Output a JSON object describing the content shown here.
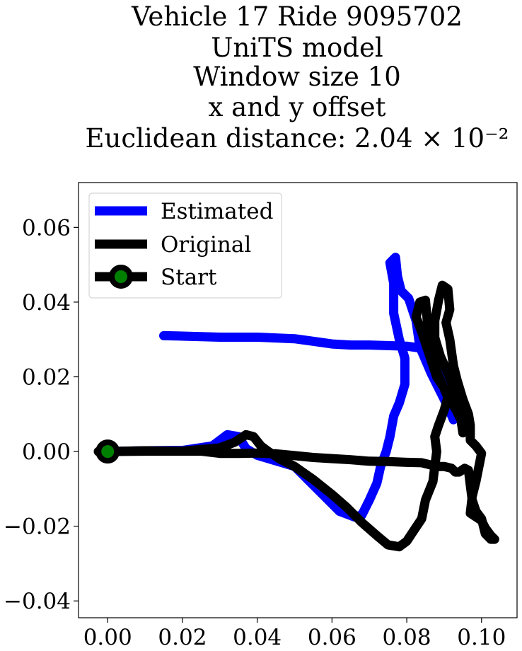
{
  "chart_data": {
    "type": "line",
    "title_lines": [
      "Vehicle 17 Ride 9095702",
      "UniTS model",
      "Window size 10",
      "x and y offset",
      "Euclidean distance: 2.04 × 10⁻²"
    ],
    "xlabel": "",
    "ylabel": "",
    "xlim": [
      -0.0078,
      0.1095
    ],
    "ylim": [
      -0.0445,
      0.072
    ],
    "xticks": [
      0.0,
      0.02,
      0.04,
      0.06,
      0.08,
      0.1
    ],
    "xtick_labels": [
      "0.00",
      "0.02",
      "0.04",
      "0.06",
      "0.08",
      "0.10"
    ],
    "yticks": [
      -0.04,
      -0.02,
      0.0,
      0.02,
      0.04,
      0.06
    ],
    "ytick_labels": [
      "−0.04",
      "−0.02",
      "0.00",
      "0.02",
      "0.04",
      "0.06"
    ],
    "grid": false,
    "legend": {
      "position": "top-left",
      "entries": [
        {
          "label": "Estimated",
          "color": "#0000ff",
          "kind": "line"
        },
        {
          "label": "Original",
          "color": "#000000",
          "kind": "line"
        },
        {
          "label": "Start",
          "color": "#000000",
          "marker_color": "#008000",
          "kind": "marker"
        }
      ]
    },
    "series": [
      {
        "name": "Estimated",
        "color": "#0000ff",
        "points": [
          [
            0.0,
            0.0
          ],
          [
            0.01,
            0.0002
          ],
          [
            0.02,
            0.0003
          ],
          [
            0.028,
            0.0015
          ],
          [
            0.032,
            0.0045
          ],
          [
            0.035,
            0.004
          ],
          [
            0.037,
            0.0008
          ],
          [
            0.04,
            -0.001
          ],
          [
            0.045,
            -0.0025
          ],
          [
            0.05,
            -0.004
          ],
          [
            0.054,
            -0.008
          ],
          [
            0.058,
            -0.012
          ],
          [
            0.062,
            -0.016
          ],
          [
            0.066,
            -0.0175
          ],
          [
            0.068,
            -0.017
          ],
          [
            0.07,
            -0.013
          ],
          [
            0.072,
            -0.0085
          ],
          [
            0.073,
            -0.004
          ],
          [
            0.0745,
            0.0
          ],
          [
            0.0755,
            0.004
          ],
          [
            0.0765,
            0.0095
          ],
          [
            0.078,
            0.013
          ],
          [
            0.0795,
            0.018
          ],
          [
            0.0795,
            0.025
          ],
          [
            0.078,
            0.03
          ],
          [
            0.0765,
            0.037
          ],
          [
            0.0765,
            0.045
          ],
          [
            0.0755,
            0.0505
          ],
          [
            0.077,
            0.052
          ],
          [
            0.0775,
            0.047
          ],
          [
            0.0785,
            0.043
          ],
          [
            0.0805,
            0.041
          ],
          [
            0.0825,
            0.035
          ],
          [
            0.0835,
            0.028
          ],
          [
            0.0865,
            0.021
          ],
          [
            0.089,
            0.016
          ],
          [
            0.091,
            0.012
          ],
          [
            0.0925,
            0.0085
          ],
          [
            0.093,
            0.012
          ],
          [
            0.092,
            0.017
          ],
          [
            0.09,
            0.02
          ],
          [
            0.0875,
            0.0245
          ],
          [
            0.085,
            0.0275
          ],
          [
            0.08,
            0.0282
          ],
          [
            0.07,
            0.0285
          ],
          [
            0.065,
            0.0285
          ],
          [
            0.06,
            0.0288
          ],
          [
            0.0565,
            0.0293
          ],
          [
            0.05,
            0.0302
          ],
          [
            0.04,
            0.0306
          ],
          [
            0.03,
            0.0306
          ],
          [
            0.02,
            0.0309
          ],
          [
            0.015,
            0.031
          ]
        ]
      },
      {
        "name": "Original",
        "color": "#000000",
        "points": [
          [
            0.0,
            0.0
          ],
          [
            0.01,
            0.0002
          ],
          [
            0.02,
            0.0001
          ],
          [
            0.03,
            0.001
          ],
          [
            0.034,
            0.0025
          ],
          [
            0.037,
            0.0045
          ],
          [
            0.039,
            0.004
          ],
          [
            0.041,
            0.0015
          ],
          [
            0.043,
            0.0
          ],
          [
            0.046,
            -0.002
          ],
          [
            0.05,
            -0.004
          ],
          [
            0.055,
            -0.0075
          ],
          [
            0.06,
            -0.0115
          ],
          [
            0.064,
            -0.015
          ],
          [
            0.068,
            -0.019
          ],
          [
            0.072,
            -0.0225
          ],
          [
            0.075,
            -0.025
          ],
          [
            0.078,
            -0.0255
          ],
          [
            0.08,
            -0.024
          ],
          [
            0.082,
            -0.021
          ],
          [
            0.084,
            -0.018
          ],
          [
            0.085,
            -0.013
          ],
          [
            0.087,
            -0.008
          ],
          [
            0.0875,
            -0.004
          ],
          [
            0.088,
            0.0
          ],
          [
            0.0875,
            0.004
          ],
          [
            0.0885,
            0.007
          ],
          [
            0.09,
            0.011
          ],
          [
            0.091,
            0.0145
          ],
          [
            0.09,
            0.017
          ],
          [
            0.088,
            0.02
          ],
          [
            0.086,
            0.026
          ],
          [
            0.084,
            0.032
          ],
          [
            0.0825,
            0.036
          ],
          [
            0.0835,
            0.04
          ],
          [
            0.085,
            0.0405
          ],
          [
            0.0855,
            0.035
          ],
          [
            0.0865,
            0.028
          ],
          [
            0.088,
            0.0215
          ],
          [
            0.091,
            0.0145
          ],
          [
            0.093,
            0.0115
          ],
          [
            0.0945,
            0.0085
          ],
          [
            0.095,
            0.005
          ],
          [
            0.0945,
            0.012
          ],
          [
            0.093,
            0.016
          ],
          [
            0.091,
            0.021
          ],
          [
            0.089,
            0.0255
          ],
          [
            0.0875,
            0.0305
          ],
          [
            0.0875,
            0.035
          ],
          [
            0.0885,
            0.0405
          ],
          [
            0.0895,
            0.0445
          ],
          [
            0.091,
            0.0435
          ],
          [
            0.0915,
            0.038
          ],
          [
            0.0905,
            0.0345
          ],
          [
            0.0915,
            0.03
          ],
          [
            0.0925,
            0.023
          ],
          [
            0.0935,
            0.019
          ],
          [
            0.095,
            0.014
          ],
          [
            0.0965,
            0.01
          ],
          [
            0.097,
            0.007
          ],
          [
            0.097,
            0.003
          ],
          [
            0.0985,
            0.0015
          ],
          [
            0.1,
            -0.0005
          ],
          [
            0.0985,
            -0.008
          ],
          [
            0.0975,
            -0.012
          ],
          [
            0.097,
            -0.0165
          ],
          [
            0.0985,
            -0.0175
          ],
          [
            0.1,
            -0.0185
          ],
          [
            0.101,
            -0.0205
          ],
          [
            0.1025,
            -0.0225
          ],
          [
            0.1035,
            -0.0235
          ],
          [
            0.1025,
            -0.0235
          ],
          [
            0.101,
            -0.022
          ],
          [
            0.1,
            -0.018
          ],
          [
            0.0985,
            -0.016
          ],
          [
            0.0975,
            -0.013
          ],
          [
            0.097,
            -0.009
          ],
          [
            0.0965,
            -0.005
          ],
          [
            0.0955,
            -0.0045
          ],
          [
            0.094,
            -0.0055
          ],
          [
            0.093,
            -0.0055
          ],
          [
            0.092,
            -0.0045
          ],
          [
            0.09,
            -0.004
          ],
          [
            0.088,
            -0.004
          ],
          [
            0.086,
            -0.0035
          ],
          [
            0.084,
            -0.003
          ],
          [
            0.08,
            -0.0029
          ],
          [
            0.075,
            -0.0027
          ],
          [
            0.07,
            -0.0026
          ],
          [
            0.065,
            -0.0022
          ],
          [
            0.06,
            -0.0019
          ],
          [
            0.055,
            -0.0016
          ],
          [
            0.05,
            -0.0011
          ],
          [
            0.045,
            -0.0006
          ],
          [
            0.04,
            -0.0004
          ],
          [
            0.035,
            -0.0005
          ],
          [
            0.03,
            -0.0005
          ],
          [
            0.025,
            0.0001
          ],
          [
            0.02,
            0.0001
          ],
          [
            0.01,
            0.0001
          ],
          [
            -0.0025,
            0.0
          ]
        ]
      }
    ],
    "start_point": {
      "x": 0.0,
      "y": 0.0,
      "marker_color": "#008000",
      "edge_color": "#000000"
    }
  }
}
